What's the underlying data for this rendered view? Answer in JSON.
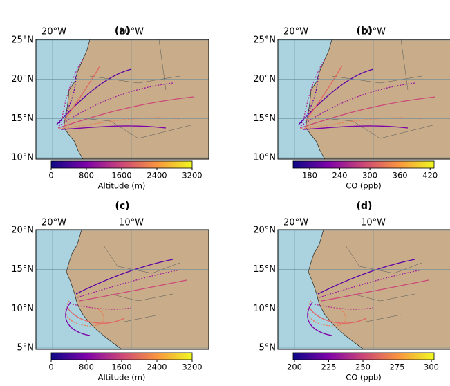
{
  "panels": [
    {
      "label": "(a)",
      "lon_labels": [
        "20°W",
        "10°W"
      ],
      "lat_labels": [
        "25°N",
        "20°N",
        "15°N",
        "10°N"
      ],
      "colorbar": {
        "label": "Altitude (m)",
        "lim": [
          0,
          3200
        ],
        "ticks": [
          0,
          800,
          1600,
          2400,
          3200
        ]
      }
    },
    {
      "label": "(b)",
      "lon_labels": [
        "20°W",
        "10°W"
      ],
      "lat_labels": [
        "25°N",
        "20°N",
        "15°N",
        "10°N"
      ],
      "colorbar": {
        "label": "CO (ppb)",
        "lim": [
          147,
          428
        ],
        "ticks": [
          180,
          240,
          300,
          360,
          420
        ]
      }
    },
    {
      "label": "(c)",
      "lon_labels": [
        "20°W",
        "10°W"
      ],
      "lat_labels": [
        "20°N",
        "15°N",
        "10°N",
        "5°N"
      ],
      "colorbar": {
        "label": "Altitude (m)",
        "lim": [
          0,
          3200
        ],
        "ticks": [
          0,
          800,
          1600,
          2400,
          3200
        ]
      }
    },
    {
      "label": "(d)",
      "lon_labels": [
        "20°W",
        "10°W"
      ],
      "lat_labels": [
        "20°N",
        "15°N",
        "10°N",
        "5°N"
      ],
      "colorbar": {
        "label": "CO (ppb)",
        "lim": [
          199,
          302
        ],
        "ticks": [
          200,
          225,
          250,
          275,
          300
        ]
      }
    }
  ]
}
